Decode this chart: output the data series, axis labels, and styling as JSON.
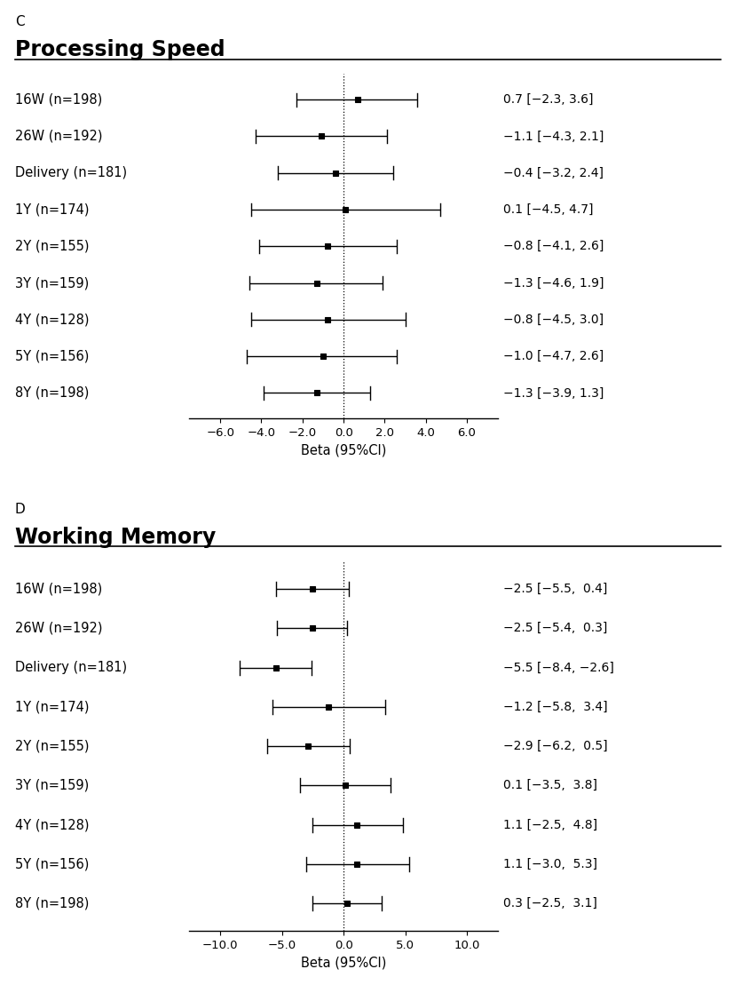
{
  "panel_C": {
    "title": "Processing Speed",
    "panel_label": "C",
    "rows": [
      {
        "label": "16W (n=198)",
        "beta": 0.7,
        "ci_lo": -2.3,
        "ci_hi": 3.6,
        "text": "0.7 [−2.3, 3.6]"
      },
      {
        "label": "26W (n=192)",
        "beta": -1.1,
        "ci_lo": -4.3,
        "ci_hi": 2.1,
        "text": "−1.1 [−4.3, 2.1]"
      },
      {
        "label": "Delivery (n=181)",
        "beta": -0.4,
        "ci_lo": -3.2,
        "ci_hi": 2.4,
        "text": "−0.4 [−3.2, 2.4]"
      },
      {
        "label": "1Y (n=174)",
        "beta": 0.1,
        "ci_lo": -4.5,
        "ci_hi": 4.7,
        "text": "0.1 [−4.5, 4.7]"
      },
      {
        "label": "2Y (n=155)",
        "beta": -0.8,
        "ci_lo": -4.1,
        "ci_hi": 2.6,
        "text": "−0.8 [−4.1, 2.6]"
      },
      {
        "label": "3Y (n=159)",
        "beta": -1.3,
        "ci_lo": -4.6,
        "ci_hi": 1.9,
        "text": "−1.3 [−4.6, 1.9]"
      },
      {
        "label": "4Y (n=128)",
        "beta": -0.8,
        "ci_lo": -4.5,
        "ci_hi": 3.0,
        "text": "−0.8 [−4.5, 3.0]"
      },
      {
        "label": "5Y (n=156)",
        "beta": -1.0,
        "ci_lo": -4.7,
        "ci_hi": 2.6,
        "text": "−1.0 [−4.7, 2.6]"
      },
      {
        "label": "8Y (n=198)",
        "beta": -1.3,
        "ci_lo": -3.9,
        "ci_hi": 1.3,
        "text": "−1.3 [−3.9, 1.3]"
      }
    ],
    "xlim": [
      -7.5,
      7.5
    ],
    "xticks": [
      -6.0,
      -4.0,
      -2.0,
      0.0,
      2.0,
      4.0,
      6.0
    ],
    "xticklabels": [
      "−6.0",
      "−4.0",
      "−2.0",
      "0.0",
      "2.0",
      "4.0",
      "6.0"
    ],
    "xlabel": "Beta (95%CI)"
  },
  "panel_D": {
    "title": "Working Memory",
    "panel_label": "D",
    "rows": [
      {
        "label": "16W (n=198)",
        "beta": -2.5,
        "ci_lo": -5.5,
        "ci_hi": 0.4,
        "text": "−2.5 [−5.5,  0.4]"
      },
      {
        "label": "26W (n=192)",
        "beta": -2.5,
        "ci_lo": -5.4,
        "ci_hi": 0.3,
        "text": "−2.5 [−5.4,  0.3]"
      },
      {
        "label": "Delivery (n=181)",
        "beta": -5.5,
        "ci_lo": -8.4,
        "ci_hi": -2.6,
        "text": "−5.5 [−8.4, −2.6]"
      },
      {
        "label": "1Y (n=174)",
        "beta": -1.2,
        "ci_lo": -5.8,
        "ci_hi": 3.4,
        "text": "−1.2 [−5.8,  3.4]"
      },
      {
        "label": "2Y (n=155)",
        "beta": -2.9,
        "ci_lo": -6.2,
        "ci_hi": 0.5,
        "text": "−2.9 [−6.2,  0.5]"
      },
      {
        "label": "3Y (n=159)",
        "beta": 0.1,
        "ci_lo": -3.5,
        "ci_hi": 3.8,
        "text": "0.1 [−3.5,  3.8]"
      },
      {
        "label": "4Y (n=128)",
        "beta": 1.1,
        "ci_lo": -2.5,
        "ci_hi": 4.8,
        "text": "1.1 [−2.5,  4.8]"
      },
      {
        "label": "5Y (n=156)",
        "beta": 1.1,
        "ci_lo": -3.0,
        "ci_hi": 5.3,
        "text": "1.1 [−3.0,  5.3]"
      },
      {
        "label": "8Y (n=198)",
        "beta": 0.3,
        "ci_lo": -2.5,
        "ci_hi": 3.1,
        "text": "0.3 [−2.5,  3.1]"
      }
    ],
    "xlim": [
      -12.5,
      12.5
    ],
    "xticks": [
      -10.0,
      -5.0,
      0.0,
      5.0,
      10.0
    ],
    "xticklabels": [
      "−10.0",
      "−5.0",
      "0.0",
      "5.0",
      "10.0"
    ],
    "xlabel": "Beta (95%CI)"
  },
  "bg_color": "#ffffff",
  "marker_size": 5,
  "linewidth": 1.0,
  "cap_size": 0.18,
  "label_fontsize": 10.5,
  "title_fontsize": 17,
  "panel_letter_fontsize": 11,
  "annotation_fontsize": 10,
  "tick_fontsize": 9.5,
  "xlabel_fontsize": 10.5
}
